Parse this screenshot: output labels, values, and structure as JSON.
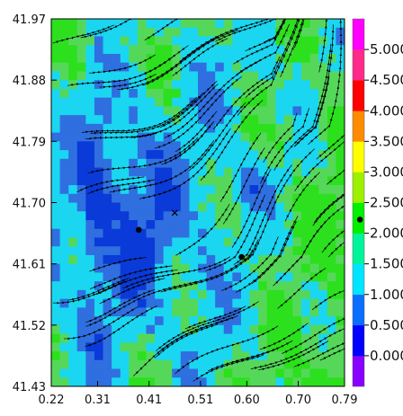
{
  "chart_data": {
    "type": "heatmap",
    "title": "",
    "xlabel": "",
    "ylabel": "",
    "xlim": [
      0.22,
      0.79
    ],
    "ylim": [
      41.43,
      41.97
    ],
    "x_ticks": [
      "0.22",
      "0.31",
      "0.41",
      "0.51",
      "0.60",
      "0.70",
      "0.79"
    ],
    "y_ticks": [
      "41.97",
      "41.88",
      "41.79",
      "41.70",
      "41.61",
      "41.52",
      "41.43"
    ],
    "colorbar": {
      "placement": "right",
      "levels": [
        "0.000",
        "0.500",
        "1.000",
        "1.500",
        "2.000",
        "2.500",
        "3.000",
        "3.500",
        "4.000",
        "4.500",
        "5.000"
      ],
      "colors": [
        "#8800ff",
        "#0000ff",
        "#0a6eff",
        "#00e5ff",
        "#00f59a",
        "#00f000",
        "#9cf000",
        "#ffff00",
        "#ff8c00",
        "#ff0000",
        "#ff2a8a",
        "#ff00ff"
      ]
    },
    "field_colors": {
      "low": "#2f6fe0",
      "low_mid": "#1ad6f0",
      "mid": "#55d85a",
      "high": "#2ce01e",
      "deep": "#0a3ad8"
    },
    "streamlines": true,
    "markers": [
      {
        "type": "dot",
        "x": 0.39,
        "y": 41.66
      },
      {
        "type": "dot",
        "x": 0.59,
        "y": 41.62
      },
      {
        "type": "dot",
        "x": 0.82,
        "y": 41.675
      },
      {
        "type": "cross",
        "x": 0.46,
        "y": 41.685
      }
    ]
  }
}
